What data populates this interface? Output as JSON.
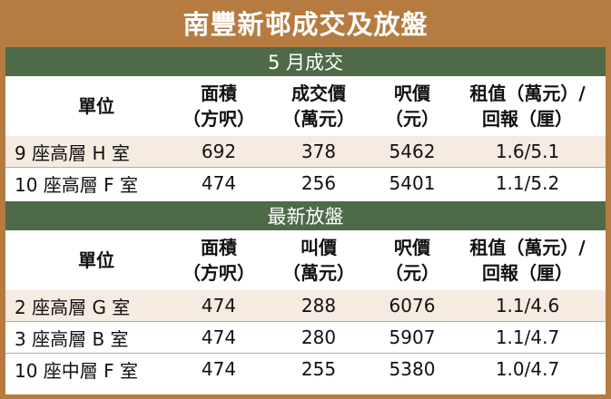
{
  "title": "南豐新邨成交及放盤",
  "sections": [
    {
      "header": "5 月成交",
      "columns": [
        [
          "單位"
        ],
        [
          "面積",
          "（方呎）"
        ],
        [
          "成交價",
          "（萬元）"
        ],
        [
          "呎價",
          "（元）"
        ],
        [
          "租值（萬元）/",
          "回報（厘）"
        ]
      ],
      "rows": [
        [
          "9 座高層 H 室",
          "692",
          "378",
          "5462",
          "1.6/5.1"
        ],
        [
          "10 座高層 F 室",
          "474",
          "256",
          "5401",
          "1.1/5.2"
        ]
      ]
    },
    {
      "header": "最新放盤",
      "columns": [
        [
          "單位"
        ],
        [
          "面積",
          "（方呎）"
        ],
        [
          "叫價",
          "（萬元）"
        ],
        [
          "呎價",
          "（元）"
        ],
        [
          "租值（萬元）/",
          "回報（厘）"
        ]
      ],
      "rows": [
        [
          "2 座高層 G 室",
          "474",
          "288",
          "6076",
          "1.1/4.6"
        ],
        [
          "3 座高層 B 室",
          "474",
          "280",
          "5907",
          "1.1/4.7"
        ],
        [
          "10 座中層 F 室",
          "474",
          "255",
          "5380",
          "1.0/4.7"
        ]
      ]
    }
  ]
}
